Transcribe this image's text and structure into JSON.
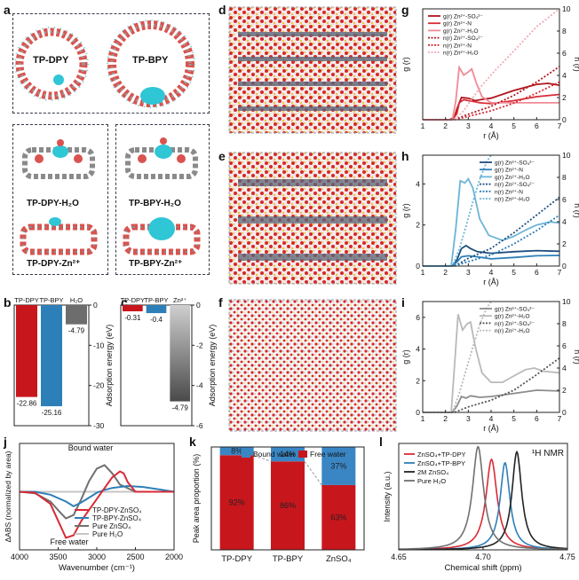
{
  "panel_letters": [
    "a",
    "b",
    "c",
    "d",
    "e",
    "f",
    "g",
    "h",
    "i",
    "j",
    "k",
    "l"
  ],
  "panel_a": {
    "top_labels": [
      "TP-DPY",
      "TP-BPY"
    ],
    "grid_labels": [
      "TP-DPY-H₂O",
      "TP-BPY-H₂O",
      "TP-DPY-Zn²⁺",
      "TP-BPY-Zn²⁺"
    ]
  },
  "colors": {
    "dark_red": "#b1151d",
    "red": "#d82a35",
    "pink": "#f08a96",
    "light_pink": "#f2a9b3",
    "dark_blue": "#1d4e7e",
    "blue": "#2d7fb8",
    "light_blue": "#6cb4d6",
    "dark_gray": "#555555",
    "gray": "#8c8c8c",
    "light_gray": "#b9b9b9",
    "bound_blue": "#3a86c4"
  },
  "chart_data": [
    {
      "id": "b",
      "type": "bar",
      "categories": [
        "TP-DPY",
        "TP-BPY",
        "H₂O"
      ],
      "values": [
        -22.86,
        -25.16,
        -4.79
      ],
      "value_labels": [
        "-22.86",
        "-25.16",
        "-4.79"
      ],
      "ylabel": "Adsorption energy (eV)",
      "ylim": [
        -30,
        0
      ],
      "yticks": [
        0,
        -10,
        -20,
        -30
      ],
      "ytick_labels": [
        "0",
        "-10",
        "-20",
        "-30"
      ]
    },
    {
      "id": "c",
      "type": "bar",
      "categories": [
        "TP-DPY",
        "TP-BPY",
        "Zn²⁺"
      ],
      "values": [
        -0.31,
        -0.4,
        -4.79
      ],
      "value_labels": [
        "-0.31",
        "-0.4",
        "-4.79"
      ],
      "ylabel": "Adsorption energy (eV)",
      "ylim": [
        -6,
        0
      ],
      "yticks": [
        0,
        -2,
        -4,
        -6
      ],
      "ytick_labels": [
        "0",
        "-2",
        "-4",
        "-6"
      ]
    },
    {
      "id": "g",
      "type": "line",
      "xlabel": "r (Å)",
      "ylabel": "g (r)",
      "ylabel_right": "n (r)",
      "xlim": [
        1,
        7
      ],
      "xticks": [
        1,
        2,
        3,
        4,
        5,
        6,
        7
      ],
      "xtick_labels": [
        "1",
        "2",
        "3",
        "4",
        "5",
        "6",
        "7"
      ],
      "ylim": [
        0,
        3.6
      ],
      "yticks": [],
      "y2lim": [
        0,
        10
      ],
      "y2ticks": [
        0,
        2,
        4,
        6,
        8,
        10
      ],
      "y2tick_labels": [
        "0",
        "2",
        "4",
        "6",
        "8",
        "10"
      ],
      "series": [
        {
          "name": "g(r) Zn²⁺-SO₄²⁻",
          "axis": "left",
          "style": "solid",
          "color": "#b1151d",
          "x": [
            1,
            2.2,
            2.4,
            2.5,
            2.7,
            3.0,
            3.3,
            3.6,
            4.0,
            5.0,
            6.0,
            6.5,
            7.0
          ],
          "y": [
            0,
            0,
            0.1,
            0.35,
            0.72,
            0.7,
            0.62,
            0.66,
            0.7,
            0.95,
            1.15,
            1.18,
            1.12
          ]
        },
        {
          "name": "g(r) Zn²⁺-N",
          "axis": "left",
          "style": "solid",
          "color": "#d82a35",
          "x": [
            1,
            2.3,
            2.5,
            2.6,
            2.8,
            3.0,
            3.2,
            3.5,
            4.0,
            5.0,
            6.0,
            7.0
          ],
          "y": [
            0,
            0,
            0.2,
            0.55,
            0.65,
            0.62,
            0.6,
            0.55,
            0.52,
            0.62,
            0.75,
            0.82
          ]
        },
        {
          "name": "g(r) Zn²⁺-H₂O",
          "axis": "left",
          "style": "solid",
          "color": "#f08a96",
          "x": [
            1,
            2.3,
            2.45,
            2.6,
            2.8,
            3.0,
            3.15,
            3.35,
            3.6,
            4.0,
            5.0,
            6.0,
            7.0
          ],
          "y": [
            0,
            0,
            0.6,
            1.7,
            1.45,
            1.55,
            1.65,
            1.2,
            0.75,
            0.55,
            0.55,
            0.55,
            0.55
          ]
        },
        {
          "name": "n(r) Zn²⁺-SO₄²⁻",
          "axis": "right",
          "style": "dotted",
          "color": "#b1151d",
          "x": [
            1,
            2.4,
            3.0,
            4.0,
            5.0,
            6.0,
            7.0
          ],
          "y": [
            0,
            0,
            0.5,
            1.2,
            2.2,
            3.4,
            4.8
          ]
        },
        {
          "name": "n(r) Zn²⁺-N",
          "axis": "right",
          "style": "dotted",
          "color": "#d82a35",
          "x": [
            1,
            2.4,
            3.0,
            4.0,
            5.0,
            6.0,
            7.0
          ],
          "y": [
            0,
            0,
            0.3,
            0.8,
            1.5,
            2.4,
            3.4
          ]
        },
        {
          "name": "n(r) Zn²⁺-H₂O",
          "axis": "right",
          "style": "dotted",
          "color": "#f2a9b3",
          "x": [
            1,
            2.4,
            2.8,
            3.2,
            3.6,
            4.2,
            5.0,
            6.0,
            7.0
          ],
          "y": [
            0,
            0,
            0.8,
            2.0,
            3.1,
            4.5,
            6.2,
            8.4,
            10
          ]
        }
      ]
    },
    {
      "id": "h",
      "type": "line",
      "xlabel": "r (Å)",
      "ylabel": "g (r)",
      "ylabel_right": "n (r)",
      "xlim": [
        1,
        7
      ],
      "xticks": [
        1,
        2,
        3,
        4,
        5,
        6,
        7
      ],
      "xtick_labels": [
        "1",
        "2",
        "3",
        "4",
        "5",
        "6",
        "7"
      ],
      "ylim": [
        0,
        5.4
      ],
      "yticks": [
        0,
        2,
        4
      ],
      "ytick_labels": [
        "0",
        "2",
        "4"
      ],
      "y2lim": [
        0,
        10
      ],
      "y2ticks": [
        0,
        2,
        4,
        6,
        8,
        10
      ],
      "y2tick_labels": [
        "0",
        "2",
        "4",
        "6",
        "8",
        "10"
      ],
      "series": [
        {
          "name": "g(r) Zn²⁺-SO₄²⁻",
          "axis": "left",
          "style": "solid",
          "color": "#1d4e7e",
          "x": [
            1,
            2.3,
            2.5,
            2.7,
            2.9,
            3.1,
            3.4,
            4.0,
            5.0,
            6.0,
            7.0
          ],
          "y": [
            0,
            0,
            0.3,
            0.85,
            1.0,
            0.85,
            0.7,
            0.62,
            0.7,
            0.75,
            0.72
          ]
        },
        {
          "name": "g(r) Zn²⁺-N",
          "axis": "left",
          "style": "solid",
          "color": "#2d7fb8",
          "x": [
            1,
            2.3,
            2.5,
            2.7,
            3.0,
            3.4,
            4.0,
            5.0,
            6.0,
            7.0
          ],
          "y": [
            0,
            0,
            0.2,
            0.45,
            0.5,
            0.45,
            0.35,
            0.42,
            0.5,
            0.52
          ]
        },
        {
          "name": "g(r) Zn²⁺-H₂O",
          "axis": "left",
          "style": "solid",
          "color": "#6cb4d6",
          "x": [
            1,
            2.25,
            2.45,
            2.65,
            2.85,
            3.0,
            3.2,
            3.5,
            3.9,
            4.5,
            5.0,
            5.5,
            6.0,
            6.6,
            7.0
          ],
          "y": [
            0,
            0,
            1.8,
            4.15,
            4.05,
            4.25,
            3.8,
            2.3,
            1.5,
            1.25,
            1.45,
            1.75,
            2.0,
            2.15,
            2.1
          ]
        },
        {
          "name": "n(r) Zn²⁺-SO₄²⁻",
          "axis": "right",
          "style": "dotted",
          "color": "#1d4e7e",
          "x": [
            1,
            2.4,
            3.0,
            4.0,
            5.0,
            6.0,
            7.0
          ],
          "y": [
            0,
            0,
            0.7,
            1.6,
            3.0,
            4.6,
            6.2
          ]
        },
        {
          "name": "n(r) Zn²⁺-N",
          "axis": "right",
          "style": "dotted",
          "color": "#2d7fb8",
          "x": [
            1,
            2.4,
            3.0,
            4.0,
            5.0,
            6.0,
            7.0
          ],
          "y": [
            0,
            0,
            0.4,
            1.0,
            2.0,
            3.2,
            4.6
          ]
        },
        {
          "name": "n(r) Zn²⁺-H₂O",
          "axis": "right",
          "style": "dotted",
          "color": "#6cb4d6",
          "x": [
            1,
            2.3,
            2.6,
            2.9,
            3.2,
            3.5,
            3.8,
            4.0
          ],
          "y": [
            0,
            0,
            1.5,
            3.6,
            5.8,
            7.8,
            9.4,
            10
          ]
        }
      ]
    },
    {
      "id": "i",
      "type": "line",
      "xlabel": "r (Å)",
      "ylabel": "g (r)",
      "ylabel_right": "n (r)",
      "xlim": [
        1,
        7
      ],
      "xticks": [
        1,
        2,
        3,
        4,
        5,
        6,
        7
      ],
      "xtick_labels": [
        "1",
        "2",
        "3",
        "4",
        "5",
        "6",
        "7"
      ],
      "ylim": [
        0,
        7
      ],
      "yticks": [
        0,
        2,
        4,
        6
      ],
      "ytick_labels": [
        "0",
        "2",
        "4",
        "6"
      ],
      "y2lim": [
        0,
        10
      ],
      "y2ticks": [
        0,
        2,
        4,
        6,
        8,
        10
      ],
      "y2tick_labels": [
        "0",
        "2",
        "4",
        "6",
        "8",
        "10"
      ],
      "series": [
        {
          "name": "g(r) Zn²⁺-SO₄²⁻",
          "axis": "left",
          "style": "solid",
          "color": "#8c8c8c",
          "x": [
            1,
            2.3,
            2.5,
            2.7,
            2.9,
            3.1,
            3.5,
            4.0,
            5.0,
            6.0,
            7.0
          ],
          "y": [
            0,
            0,
            0.4,
            1.0,
            0.9,
            1.05,
            0.95,
            1.0,
            1.2,
            1.4,
            1.35
          ]
        },
        {
          "name": "g(r) Zn²⁺-H₂O",
          "axis": "left",
          "style": "solid",
          "color": "#b9b9b9",
          "x": [
            1,
            2.25,
            2.4,
            2.55,
            2.75,
            2.95,
            3.1,
            3.3,
            3.6,
            4.0,
            4.5,
            5.0,
            5.5,
            5.9,
            6.3,
            7.0
          ],
          "y": [
            0,
            0,
            3.0,
            6.2,
            5.2,
            5.6,
            5.7,
            4.2,
            2.5,
            1.9,
            1.9,
            2.3,
            2.7,
            2.8,
            2.6,
            2.5
          ]
        },
        {
          "name": "n(r) Zn²⁺-SO₄²⁻",
          "axis": "right",
          "style": "dotted",
          "color": "#555555",
          "x": [
            1,
            2.4,
            3.0,
            4.0,
            5.0,
            6.0,
            7.0
          ],
          "y": [
            0,
            0,
            0.5,
            1.1,
            2.0,
            3.4,
            4.9
          ]
        },
        {
          "name": "n(r) Zn²⁺-H₂O",
          "axis": "right",
          "style": "dotted",
          "color": "#b9b9b9",
          "x": [
            1,
            2.3,
            2.6,
            2.9,
            3.2,
            3.5,
            3.8,
            4.0
          ],
          "y": [
            0,
            0,
            1.7,
            3.8,
            5.9,
            7.9,
            9.4,
            10
          ]
        }
      ]
    },
    {
      "id": "j",
      "type": "line",
      "xlabel": "Wavenumber (cm⁻¹)",
      "ylabel": "ΔABS (normalized by area)",
      "xlim": [
        4000,
        2000
      ],
      "xticks": [
        4000,
        3500,
        3000,
        2500,
        2000
      ],
      "xtick_labels": [
        "4000",
        "3500",
        "3000",
        "2500",
        "2000"
      ],
      "ylim": [
        -1.2,
        1.0
      ],
      "annotations": [
        "Bound water",
        "Free water"
      ],
      "series": [
        {
          "name": "TP-DPY-ZnSO₄",
          "color": "#d82a35",
          "x": [
            4000,
            3800,
            3600,
            3500,
            3400,
            3300,
            3200,
            3000,
            2800,
            2700,
            2650,
            2600,
            2500,
            2300,
            2000
          ],
          "y": [
            0,
            -0.02,
            -0.25,
            -0.6,
            -0.95,
            -0.9,
            -0.6,
            -0.15,
            0.3,
            0.42,
            0.38,
            0.2,
            0,
            0,
            0
          ]
        },
        {
          "name": "TP-BPY-ZnSO₄",
          "color": "#2d7fb8",
          "x": [
            4000,
            3800,
            3600,
            3400,
            3300,
            3200,
            3100,
            3000,
            2900,
            2800,
            2600,
            2400,
            2200,
            2000
          ],
          "y": [
            0,
            0,
            -0.06,
            -0.2,
            -0.3,
            -0.22,
            -0.12,
            -0.02,
            0.04,
            0.08,
            0.12,
            0.1,
            0.05,
            0
          ]
        },
        {
          "name": "Pure ZnSO₄",
          "color": "#707070",
          "x": [
            4000,
            3800,
            3600,
            3500,
            3400,
            3300,
            3200,
            3100,
            3000,
            2900,
            2800,
            2700,
            2500,
            2300,
            2000
          ],
          "y": [
            0,
            -0.03,
            -0.2,
            -0.38,
            -0.55,
            -0.48,
            -0.15,
            0.22,
            0.48,
            0.55,
            0.38,
            0.15,
            0,
            0,
            0
          ]
        },
        {
          "name": "Pure H₂O",
          "color": "#c6c6c6",
          "x": [
            4000,
            2000
          ],
          "y": [
            0,
            0
          ]
        }
      ]
    },
    {
      "id": "k",
      "type": "bar",
      "categories": [
        "TP-DPY",
        "TP-BPY",
        "ZnSO₄"
      ],
      "series": [
        {
          "name": "Free water",
          "values": [
            92,
            86,
            63
          ],
          "labels": [
            "92%",
            "86%",
            "63%"
          ],
          "color": "#c8161d"
        },
        {
          "name": "Bound water",
          "values": [
            8,
            14,
            37
          ],
          "labels": [
            "8%",
            "14%",
            "37%"
          ],
          "color": "#3a86c4"
        }
      ],
      "ylabel": "Peak area proportion (%)",
      "ylim": [
        0,
        100
      ]
    },
    {
      "id": "l",
      "type": "line",
      "title": "¹H NMR",
      "xlabel": "Chemical shift (ppm)",
      "ylabel": "Intensity (a.u.)",
      "xlim": [
        4.65,
        4.75
      ],
      "xticks": [
        4.65,
        4.7,
        4.75
      ],
      "xtick_labels": [
        "4.65",
        "4.70",
        "4.75"
      ],
      "series": [
        {
          "name": "ZnSO₄+TP-DPY",
          "color": "#d82a35",
          "center": 4.705,
          "height": 0.85,
          "width": 0.004
        },
        {
          "name": "ZnSO₄+TP-BPY",
          "color": "#2d7fb8",
          "center": 4.713,
          "height": 0.82,
          "width": 0.0035
        },
        {
          "name": "2M ZnSO₄",
          "color": "#222222",
          "center": 4.72,
          "height": 0.92,
          "width": 0.0035
        },
        {
          "name": "Pure H₂O",
          "color": "#707070",
          "center": 4.697,
          "height": 0.97,
          "width": 0.004
        }
      ]
    }
  ]
}
